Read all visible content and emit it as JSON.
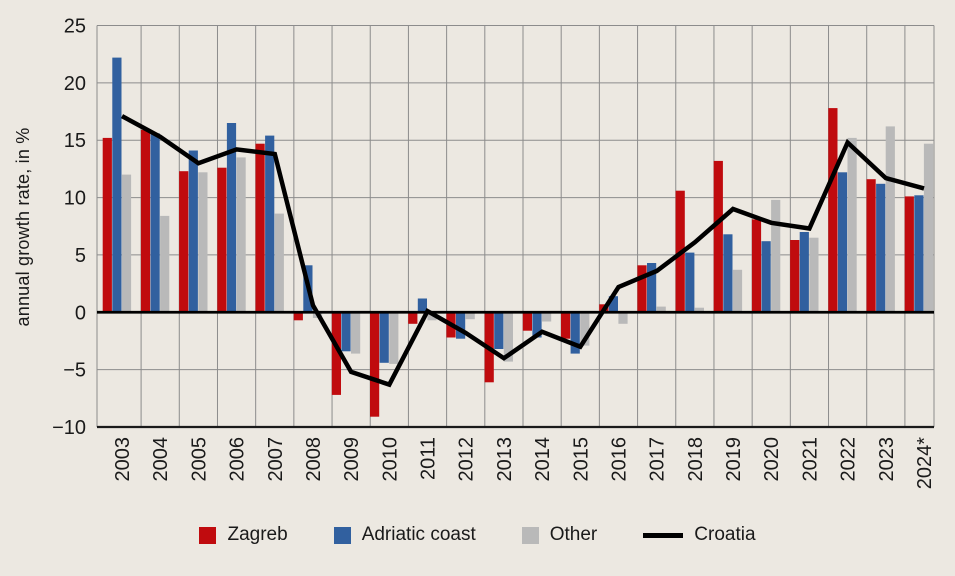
{
  "colors": {
    "zagreb": "#c00b0e",
    "adriatic_coast": "#31609f",
    "other": "#b9b9b9",
    "croatia_line": "#000000",
    "background": "#ece8e1",
    "gridline": "#8c8c8c",
    "text": "#1a1a1a"
  },
  "chart_data": {
    "type": "bar+line",
    "title": "",
    "xlabel": "",
    "ylabel": "annual growth rate, in %",
    "ylim": [
      -10,
      25
    ],
    "ytick_step": 5,
    "y_ticks": [
      25,
      20,
      15,
      10,
      5,
      0,
      -5,
      -10
    ],
    "grid": true,
    "legend_position": "bottom",
    "categories": [
      "2003",
      "2004",
      "2005",
      "2006",
      "2007",
      "2008",
      "2009",
      "2010",
      "2011",
      "2012",
      "2013",
      "2014",
      "2015",
      "2016",
      "2017",
      "2018",
      "2019",
      "2020",
      "2021",
      "2022",
      "2023",
      "2024*"
    ],
    "series": [
      {
        "name": "Zagreb",
        "type": "bar",
        "color": "#c00b0e",
        "values": [
          15.2,
          15.9,
          12.3,
          12.6,
          14.7,
          -0.7,
          -7.2,
          -9.1,
          -1.0,
          -2.2,
          -6.1,
          -1.6,
          -2.3,
          0.7,
          4.1,
          10.6,
          13.2,
          8.1,
          6.3,
          17.8,
          11.6,
          10.1
        ]
      },
      {
        "name": "Adriatic coast",
        "type": "bar",
        "color": "#31609f",
        "values": [
          22.2,
          15.6,
          14.1,
          16.5,
          15.4,
          4.1,
          -3.4,
          -4.4,
          1.2,
          -2.3,
          -3.2,
          -2.2,
          -3.6,
          1.4,
          4.3,
          5.2,
          6.8,
          6.2,
          7.0,
          12.2,
          11.2,
          10.2
        ]
      },
      {
        "name": "Other",
        "type": "bar",
        "color": "#b9b9b9",
        "values": [
          12.0,
          8.4,
          12.2,
          13.5,
          8.6,
          -0.5,
          -3.6,
          -4.5,
          -0.7,
          -0.6,
          -4.3,
          -0.8,
          -2.9,
          -1.0,
          0.5,
          0.4,
          3.7,
          9.8,
          6.5,
          15.2,
          16.2,
          14.7
        ]
      },
      {
        "name": "Croatia",
        "type": "line",
        "color": "#000000",
        "values": [
          17.1,
          15.3,
          13.0,
          14.2,
          13.8,
          0.6,
          -5.2,
          -6.3,
          0.1,
          -1.8,
          -4.0,
          -1.7,
          -3.0,
          2.2,
          3.6,
          6.1,
          9.0,
          7.8,
          7.3,
          14.8,
          11.7,
          10.8
        ]
      }
    ]
  }
}
